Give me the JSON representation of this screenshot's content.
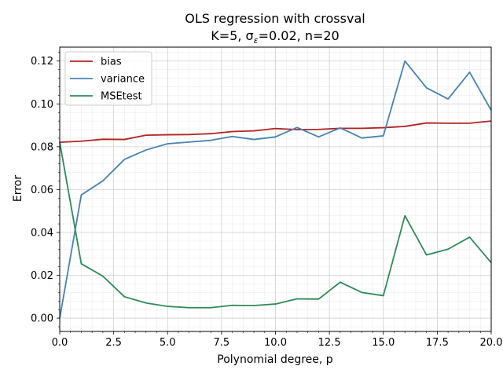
{
  "chart_data": {
    "type": "line",
    "title_line1": "OLS regression with crossval",
    "title_line2_prefix": "K=5,  σ",
    "title_line2_sub": "ε",
    "title_line2_suffix": "=0.02,  n=20",
    "xlabel": "Polynomial degree, p",
    "ylabel": "Error",
    "xlim": [
      0,
      20
    ],
    "ylim": [
      -0.0062,
      0.1265
    ],
    "xticks": [
      0,
      2.5,
      5,
      7.5,
      10,
      12.5,
      15,
      17.5,
      20
    ],
    "xtick_labels": [
      "0.0",
      "2.5",
      "5.0",
      "7.5",
      "10.0",
      "12.5",
      "15.0",
      "17.5",
      "20.0"
    ],
    "yticks": [
      0,
      0.02,
      0.04,
      0.06,
      0.08,
      0.1,
      0.12
    ],
    "ytick_labels": [
      "0.00",
      "0.02",
      "0.04",
      "0.06",
      "0.08",
      "0.10",
      "0.12"
    ],
    "grid": true,
    "legend_position": "top-left",
    "x": [
      0,
      1,
      2,
      3,
      4,
      5,
      6,
      7,
      8,
      9,
      10,
      11,
      12,
      13,
      14,
      15,
      16,
      17,
      18,
      19,
      20
    ],
    "series": [
      {
        "name": "bias",
        "color": "#b22222",
        "values": [
          0.0821,
          0.0826,
          0.0835,
          0.0834,
          0.0854,
          0.0856,
          0.0857,
          0.0861,
          0.0871,
          0.0874,
          0.0885,
          0.088,
          0.0881,
          0.0886,
          0.0886,
          0.0889,
          0.0895,
          0.0911,
          0.091,
          0.091,
          0.092
        ]
      },
      {
        "name": "variance",
        "color": "#4682b4",
        "values": [
          0.0,
          0.0575,
          0.0641,
          0.0741,
          0.0785,
          0.0814,
          0.0822,
          0.083,
          0.0848,
          0.0834,
          0.0846,
          0.089,
          0.0846,
          0.0888,
          0.0841,
          0.0851,
          0.12,
          0.1075,
          0.1023,
          0.1148,
          0.097
        ]
      },
      {
        "name": "MSEtest",
        "color": "#2e8b57",
        "values": [
          0.0821,
          0.0254,
          0.0196,
          0.01,
          0.0071,
          0.0055,
          0.0049,
          0.0049,
          0.006,
          0.0059,
          0.0066,
          0.009,
          0.0089,
          0.0168,
          0.012,
          0.0105,
          0.0478,
          0.0295,
          0.0322,
          0.0378,
          0.0259
        ]
      }
    ]
  }
}
